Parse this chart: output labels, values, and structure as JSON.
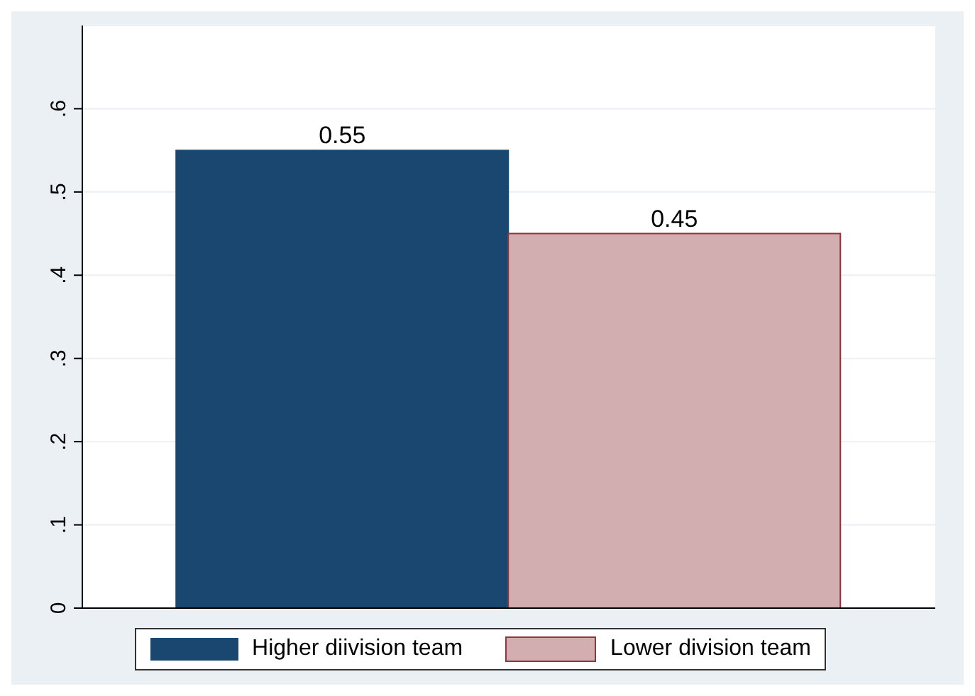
{
  "chart_data": {
    "type": "bar",
    "categories": [
      null
    ],
    "series": [
      {
        "name": "Higher diivision team",
        "color": "#1a476f",
        "values": [
          0.55
        ]
      },
      {
        "name": "Lower division team",
        "color": "#d3aeb1",
        "values": [
          0.45
        ]
      }
    ],
    "ylim": [
      0,
      0.7
    ],
    "yticks": [
      0,
      {
        "value": 0.1,
        "label": ".1"
      },
      {
        "value": 0.2,
        "label": ".2"
      },
      {
        "value": 0.3,
        "label": ".3"
      },
      {
        "value": 0.4,
        "label": ".4"
      },
      {
        "value": 0.5,
        "label": ".5"
      },
      {
        "value": 0.6,
        "label": ".6"
      }
    ],
    "grid": "y",
    "legend": "bottom",
    "data_labels": true
  }
}
